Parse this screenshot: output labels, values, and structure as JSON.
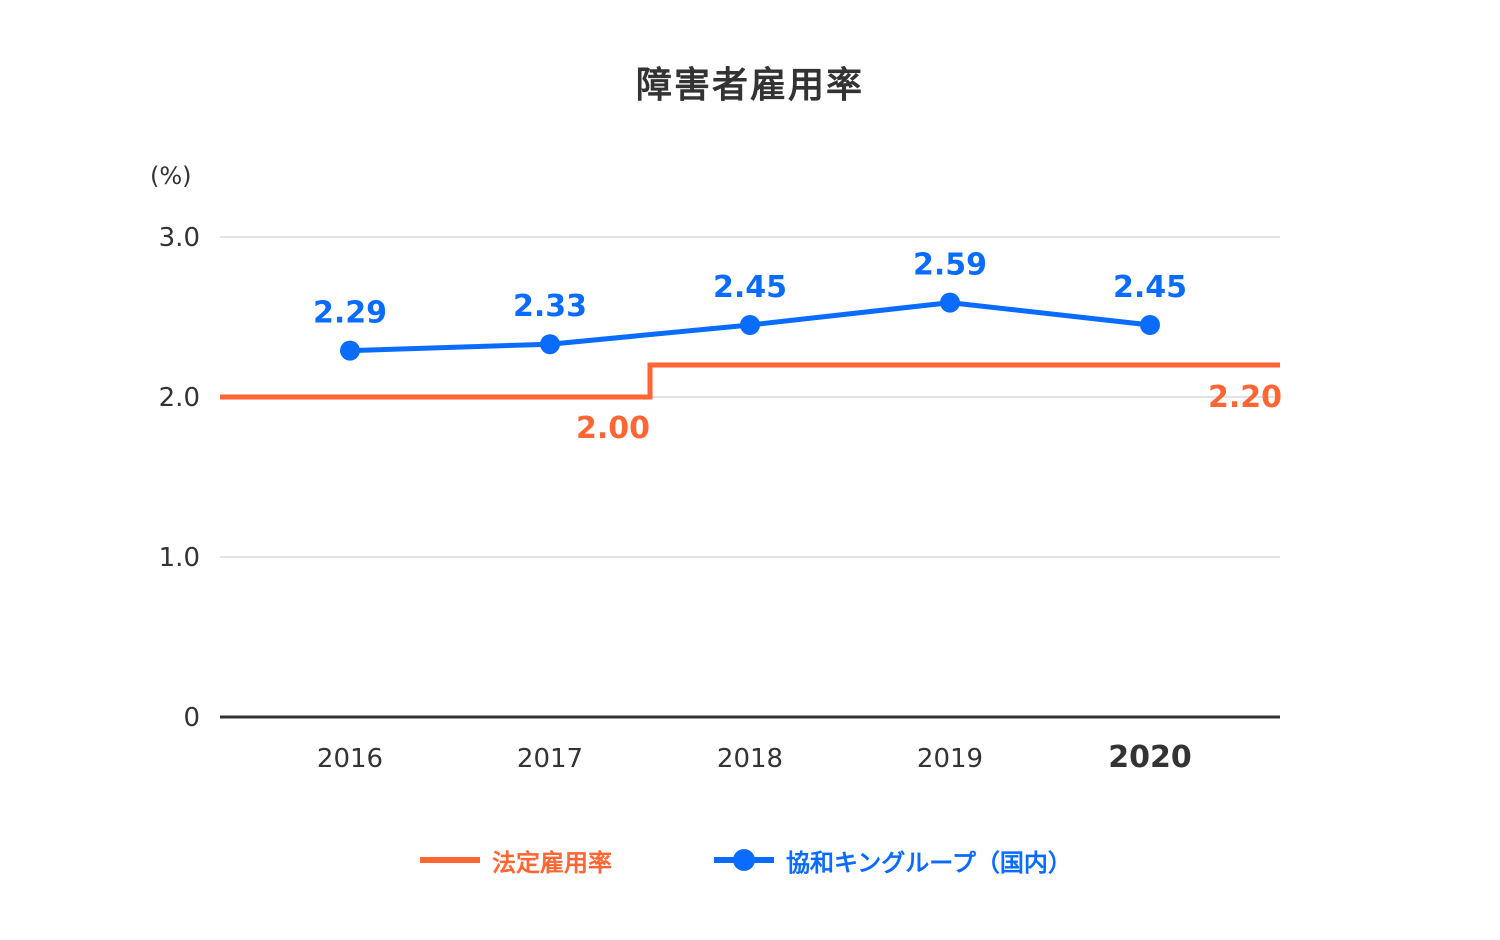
{
  "chart_data": {
    "type": "line",
    "title": "障害者雇用率",
    "ylabel": "(%)",
    "xlabel": "",
    "ylim": [
      0,
      3.0
    ],
    "yticks": [
      {
        "value": 0,
        "label": "0"
      },
      {
        "value": 1.0,
        "label": "1.0"
      },
      {
        "value": 2.0,
        "label": "2.0"
      },
      {
        "value": 3.0,
        "label": "3.0"
      }
    ],
    "categories": [
      "2016",
      "2017",
      "2018",
      "2019",
      "2020"
    ],
    "highlight_category": "2020",
    "grid": true,
    "legend_position": "bottom",
    "series": [
      {
        "name": "法定雇用率",
        "color": "#ff6633",
        "style": "step",
        "values": [
          2.0,
          2.0,
          2.2,
          2.2,
          2.2
        ],
        "labels": [
          {
            "value": 2.0,
            "text": "2.00"
          },
          {
            "value": 2.2,
            "text": "2.20"
          }
        ]
      },
      {
        "name": "協和キングループ（国内）",
        "color": "#0a6cff",
        "style": "line-marker",
        "values": [
          2.29,
          2.33,
          2.45,
          2.59,
          2.45
        ],
        "labels": [
          "2.29",
          "2.33",
          "2.45",
          "2.59",
          "2.45"
        ]
      }
    ]
  }
}
